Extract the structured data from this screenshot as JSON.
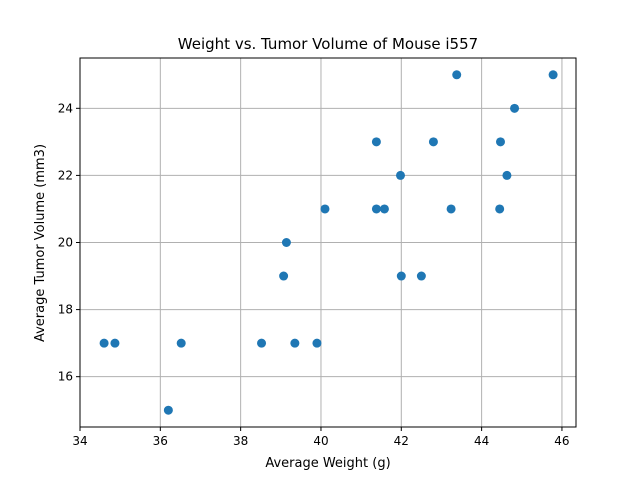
{
  "chart_data": {
    "type": "scatter",
    "title": "Weight vs. Tumor Volume of Mouse i557",
    "xlabel": "Average Weight (g)",
    "ylabel": "Average Tumor Volume (mm3)",
    "xlim": [
      34.0,
      46.35
    ],
    "ylim": [
      14.5,
      25.5
    ],
    "xticks": [
      34,
      36,
      38,
      40,
      42,
      44,
      46
    ],
    "yticks": [
      16,
      18,
      20,
      22,
      24
    ],
    "grid": true,
    "marker_color": "#1f77b4",
    "points": [
      {
        "x": 34.6,
        "y": 17
      },
      {
        "x": 34.87,
        "y": 17
      },
      {
        "x": 36.2,
        "y": 15
      },
      {
        "x": 36.52,
        "y": 17
      },
      {
        "x": 38.52,
        "y": 17
      },
      {
        "x": 39.07,
        "y": 19
      },
      {
        "x": 39.14,
        "y": 20
      },
      {
        "x": 39.35,
        "y": 17
      },
      {
        "x": 39.9,
        "y": 17
      },
      {
        "x": 40.1,
        "y": 21
      },
      {
        "x": 41.38,
        "y": 23
      },
      {
        "x": 41.38,
        "y": 21
      },
      {
        "x": 41.58,
        "y": 21
      },
      {
        "x": 41.98,
        "y": 22
      },
      {
        "x": 42.0,
        "y": 19
      },
      {
        "x": 42.5,
        "y": 19
      },
      {
        "x": 42.8,
        "y": 23
      },
      {
        "x": 43.24,
        "y": 21
      },
      {
        "x": 43.38,
        "y": 25
      },
      {
        "x": 44.45,
        "y": 21
      },
      {
        "x": 44.47,
        "y": 23
      },
      {
        "x": 44.63,
        "y": 22
      },
      {
        "x": 44.82,
        "y": 24
      },
      {
        "x": 45.78,
        "y": 25
      }
    ]
  }
}
